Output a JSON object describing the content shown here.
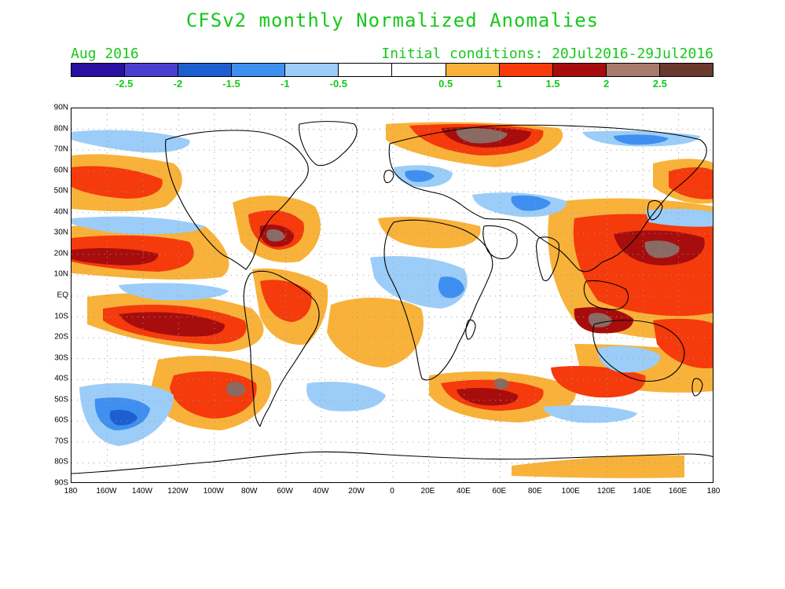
{
  "title": "CFSv2 monthly Normalized Anomalies",
  "valid_month": "Aug 2016",
  "initial_conditions": "Initial conditions: 20Jul2016-29Jul2016",
  "colorbar": {
    "colors": [
      "#2a10a0",
      "#4a3fd0",
      "#1e5fd0",
      "#3f8ff0",
      "#9ccdf8",
      "#ffffff",
      "#ffffff",
      "#f8b23a",
      "#f53a0c",
      "#a80d0d",
      "#a87a6e",
      "#6a3a2e"
    ],
    "labels": [
      "-2.5",
      "-2",
      "-1.5",
      "-1",
      "-0.5",
      "0.5",
      "1",
      "1.5",
      "2",
      "2.5"
    ]
  },
  "lat_labels": [
    "90N",
    "80N",
    "70N",
    "60N",
    "50N",
    "40N",
    "30N",
    "20N",
    "10N",
    "EQ",
    "10S",
    "20S",
    "30S",
    "40S",
    "50S",
    "60S",
    "70S",
    "80S",
    "90S"
  ],
  "lon_labels": [
    "180",
    "160W",
    "140W",
    "120W",
    "100W",
    "80W",
    "60W",
    "40W",
    "20W",
    "0",
    "20E",
    "40E",
    "60E",
    "80E",
    "100E",
    "120E",
    "140E",
    "160E",
    "180"
  ]
}
